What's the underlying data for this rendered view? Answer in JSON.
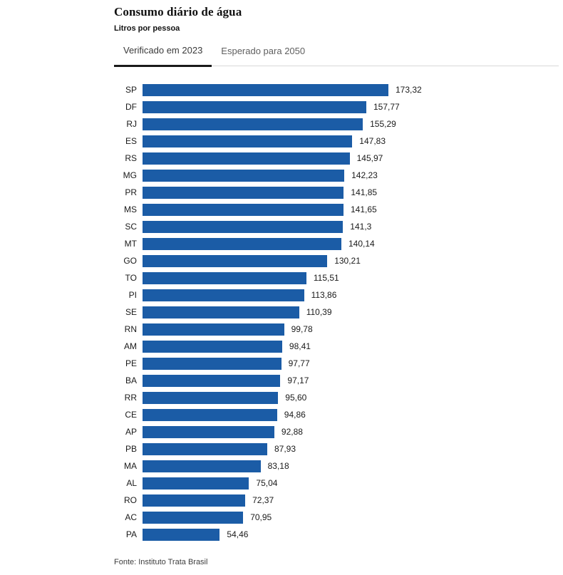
{
  "header": {
    "title": "Consumo diário de água",
    "subtitle": "Litros por pessoa"
  },
  "tabs": [
    {
      "label": "Verificado em 2023",
      "active": true
    },
    {
      "label": "Esperado para 2050",
      "active": false
    }
  ],
  "footer": {
    "source": "Fonte: Instituto Trata Brasil"
  },
  "colors": {
    "bar": "#1b5ca6",
    "tab_active_underline": "#1a1a1a",
    "tab_divider": "#d9d9d9"
  },
  "chart_data": {
    "type": "bar",
    "orientation": "horizontal",
    "title": "Consumo diário de água",
    "subtitle": "Litros por pessoa",
    "xlabel": "",
    "ylabel": "",
    "xlim": [
      0,
      180
    ],
    "grid": false,
    "legend": false,
    "bar_color": "#1b5ca6",
    "categories": [
      "SP",
      "DF",
      "RJ",
      "ES",
      "RS",
      "MG",
      "PR",
      "MS",
      "SC",
      "MT",
      "GO",
      "TO",
      "PI",
      "SE",
      "RN",
      "AM",
      "PE",
      "BA",
      "RR",
      "CE",
      "AP",
      "PB",
      "MA",
      "AL",
      "RO",
      "AC",
      "PA"
    ],
    "values": [
      173.32,
      157.77,
      155.29,
      147.83,
      145.97,
      142.23,
      141.85,
      141.65,
      141.3,
      140.14,
      130.21,
      115.51,
      113.86,
      110.39,
      99.78,
      98.41,
      97.77,
      97.17,
      95.6,
      94.86,
      92.88,
      87.93,
      83.18,
      75.04,
      72.37,
      70.95,
      54.46
    ],
    "value_labels": [
      "173,32",
      "157,77",
      "155,29",
      "147,83",
      "145,97",
      "142,23",
      "141,85",
      "141,65",
      "141,3",
      "140,14",
      "130,21",
      "115,51",
      "113,86",
      "110,39",
      "99,78",
      "98,41",
      "97,77",
      "97,17",
      "95,60",
      "94,86",
      "92,88",
      "87,93",
      "83,18",
      "75,04",
      "72,37",
      "70,95",
      "54,46"
    ]
  }
}
